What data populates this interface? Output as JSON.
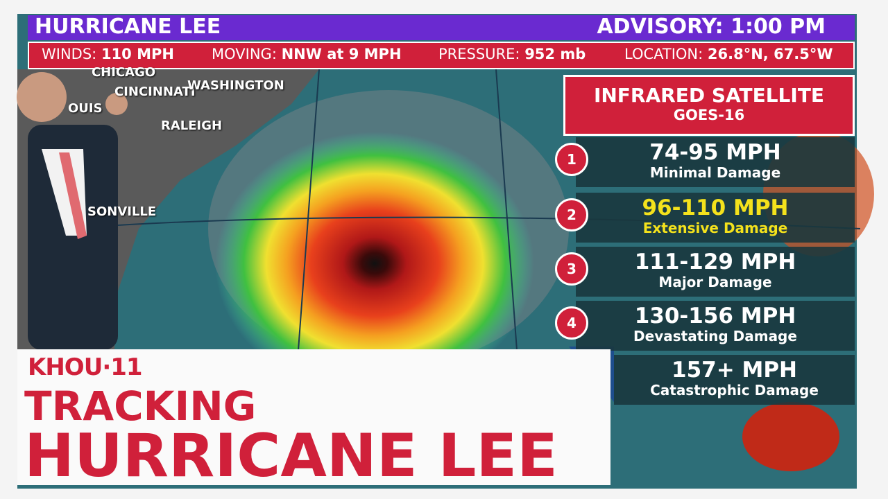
{
  "header": {
    "title": "HURRICANE LEE",
    "advisory": "ADVISORY: 1:00 PM"
  },
  "stats": [
    {
      "label": "WINDS:",
      "value": "110 MPH"
    },
    {
      "label": "MOVING:",
      "value": "NNW at 9 MPH"
    },
    {
      "label": "PRESSURE:",
      "value": "952 mb"
    },
    {
      "label": "LOCATION:",
      "value": "26.8°N, 67.5°W"
    }
  ],
  "map_labels": [
    "CHICAGO",
    "CINCINNATI",
    "WASHINGTON",
    "OUIS",
    "RALEIGH",
    "SONVILLE"
  ],
  "panel": {
    "title": "INFRARED SATELLITE",
    "subtitle": "GOES-16",
    "categories": [
      {
        "number": 1,
        "range": "74-95 MPH",
        "damage": "Minimal Damage"
      },
      {
        "number": 2,
        "range": "96-110 MPH",
        "damage": "Extensive Damage"
      },
      {
        "number": 3,
        "range": "111-129 MPH",
        "damage": "Major Damage"
      },
      {
        "number": 4,
        "range": "130-156 MPH",
        "damage": "Devastating Damage"
      },
      {
        "range": "157+ MPH",
        "damage": "Catastrophic Damage"
      }
    ]
  },
  "lower_third": {
    "logo": "KHOU·11",
    "kicker": "TRACKING",
    "headline": "HURRICANE LEE"
  }
}
